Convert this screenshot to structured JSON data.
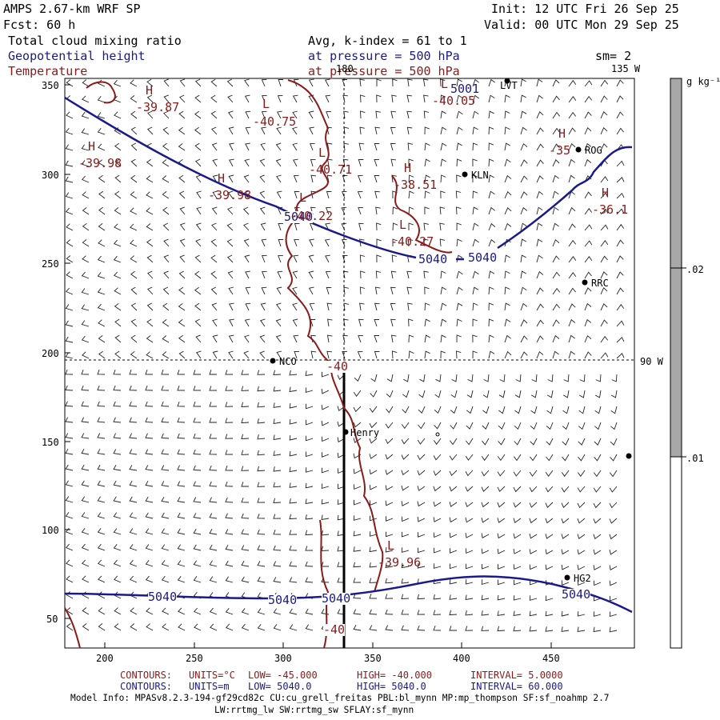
{
  "header": {
    "model": "AMPS 2.67-km WRF SP",
    "fcst": "Fcst:    60 h",
    "init": "Init: 12 UTC Fri 26 Sep 25",
    "valid": "Valid: 00 UTC Mon 29 Sep 25",
    "field1": "Total cloud mixing ratio",
    "field2": "Geopotential height",
    "field3": "Temperature",
    "avg": "Avg, k-index =  61 to   1",
    "pres1": "at pressure =  500 hPa",
    "pres2": "at pressure =  500 hPa",
    "sm": "sm= 2",
    "lon135": "135 W",
    "lon180": "180",
    "lon90": "90 W"
  },
  "colorbar": {
    "unit": "g kg⁻¹",
    "labels": [
      ".02",
      ".01"
    ]
  },
  "colors": {
    "height_contour": "#1a1a8c",
    "temp_contour": "#8b1a1a",
    "barbs": "#222222",
    "shade": "#a8a8a8"
  },
  "axes": {
    "x_ticks": [
      "200",
      "250",
      "300",
      "350",
      "400",
      "450"
    ],
    "y_ticks": [
      "350",
      "300",
      "250",
      "200",
      "150",
      "100",
      "50"
    ]
  },
  "stations": [
    "LVT",
    "ROG",
    "KLN",
    "RRC",
    "NCO",
    "Henry",
    "HG2"
  ],
  "height_labels": [
    "5040",
    "5040",
    "5040",
    "5040",
    "5040",
    "5040",
    "5040"
  ],
  "temp_labels": {
    "highs": [
      {
        "sym": "H",
        "val": "-39.87"
      },
      {
        "sym": "H",
        "val": "-39.98"
      },
      {
        "sym": "H",
        "val": "-39.98"
      },
      {
        "sym": "H",
        "val": "-38.51"
      },
      {
        "sym": "H",
        "val": "-35"
      },
      {
        "sym": "H",
        "val": "-36.1"
      }
    ],
    "lows": [
      {
        "sym": "L",
        "val": "-40.75"
      },
      {
        "sym": "L",
        "val": "-40.71"
      },
      {
        "sym": "L",
        "val": "-40.22"
      },
      {
        "sym": "L",
        "val": "-40.27"
      },
      {
        "sym": "L",
        "val": "-40.05"
      },
      {
        "sym": "L",
        "val": "-39.96"
      }
    ],
    "contour_values": [
      "-40",
      "-40"
    ],
    "top_value": "5001"
  },
  "footer": {
    "line1_label": "CONTOURS:",
    "line1_units": "UNITS=°C",
    "line1_low": "LOW=  -45.000",
    "line1_high": "HIGH=  -40.000",
    "line1_int": "INTERVAL=    5.0000",
    "line2_label": "CONTOURS:",
    "line2_units": "UNITS=m",
    "line2_low": "LOW=   5040.0",
    "line2_high": "HIGH=   5040.0",
    "line2_int": "INTERVAL=    60.000",
    "info1": "Model Info: MPASv8.2.3-194-gf29cd82c CU:cu_grell_freitas PBL:bl_mynn MP:mp_thompson SF:sf_noahmp 2.7",
    "info2": "LW:rrtmg_lw SW:rrtmg_sw SFLAY:sf_mynn"
  }
}
